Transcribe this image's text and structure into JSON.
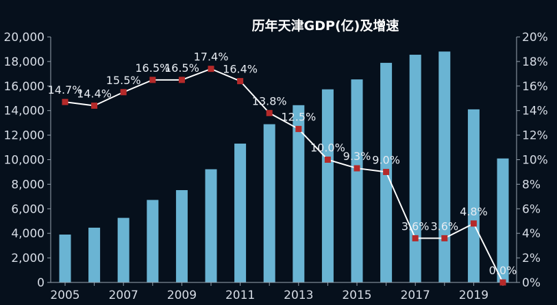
{
  "chart_data": {
    "type": "bar+line",
    "title": "历年天津GDP(亿)及增速",
    "categories": [
      "2005",
      "2006",
      "2007",
      "2008",
      "2009",
      "2010",
      "2011",
      "2012",
      "2013",
      "2014",
      "2015",
      "2016",
      "2017",
      "2018",
      "2019",
      "2020"
    ],
    "x_tick_labels": [
      "2005",
      "2007",
      "2009",
      "2011",
      "2013",
      "2015",
      "2017",
      "2019"
    ],
    "series": [
      {
        "type": "bar",
        "axis": "left",
        "color": "#6ab4d3",
        "values": [
          3900,
          4460,
          5260,
          6720,
          7520,
          9220,
          11310,
          12890,
          14440,
          15730,
          16540,
          17890,
          18550,
          18810,
          14100,
          10100
        ]
      },
      {
        "type": "line",
        "axis": "right",
        "color": "#ffffff",
        "marker_color": "#b52a2a",
        "values": [
          14.7,
          14.4,
          15.5,
          16.5,
          16.5,
          17.4,
          16.4,
          13.8,
          12.5,
          10.0,
          9.3,
          9.0,
          3.6,
          3.6,
          4.8,
          0.0
        ],
        "labels": [
          "14.7%",
          "14.4%",
          "15.5%",
          "16.5%",
          "16.5%",
          "17.4%",
          "16.4%",
          "13.8%",
          "12.5%",
          "10.0%",
          "9.3%",
          "9.0%",
          "3.6%",
          "3.6%",
          "4.8%",
          "0.0%"
        ]
      }
    ],
    "y_left": {
      "ylim": [
        0,
        20000
      ],
      "ticks": [
        0,
        2000,
        4000,
        6000,
        8000,
        10000,
        12000,
        14000,
        16000,
        18000,
        20000
      ],
      "tick_labels": [
        "0",
        "2,000",
        "4,000",
        "6,000",
        "8,000",
        "10,000",
        "12,000",
        "14,000",
        "16,000",
        "18,000",
        "20,000"
      ]
    },
    "y_right": {
      "ylim": [
        0,
        20
      ],
      "ticks": [
        0,
        2,
        4,
        6,
        8,
        10,
        12,
        14,
        16,
        18,
        20
      ],
      "tick_labels": [
        "0%",
        "2%",
        "4%",
        "6%",
        "8%",
        "10%",
        "12%",
        "14%",
        "16%",
        "18%",
        "20%"
      ]
    },
    "grid": false,
    "colors": {
      "background": "#06101c",
      "axis": "#9aa6b2",
      "text": "#d7dde6"
    }
  }
}
